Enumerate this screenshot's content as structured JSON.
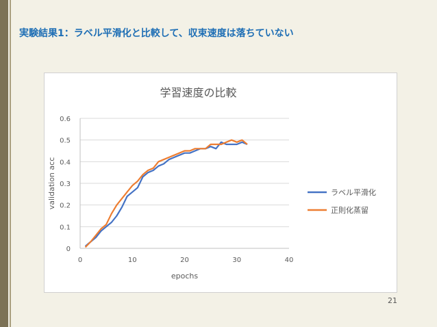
{
  "slide": {
    "title": "実験結果1：ラベル平滑化と比較して、収束速度は落ちていない",
    "page_number": "21"
  },
  "colors": {
    "accent": "#1f6fb5",
    "series_1": "#4472c4",
    "series_2": "#ed7d31"
  },
  "chart_data": {
    "type": "line",
    "title": "学習速度の比較",
    "xlabel": "epochs",
    "ylabel": "validation acc",
    "xlim": [
      0,
      40
    ],
    "ylim": [
      0,
      0.6
    ],
    "xticks": [
      0,
      10,
      20,
      30,
      40
    ],
    "yticks": [
      0,
      0.1,
      0.2,
      0.3,
      0.4,
      0.5,
      0.6
    ],
    "xtick_labels": [
      "0",
      "10",
      "20",
      "30",
      "40"
    ],
    "ytick_labels": [
      "0",
      "0.1",
      "0.2",
      "0.3",
      "0.4",
      "0.5",
      "0.6"
    ],
    "grid": "horizontal",
    "legend": "right",
    "x": [
      1,
      2,
      3,
      4,
      5,
      6,
      7,
      8,
      9,
      10,
      11,
      12,
      13,
      14,
      15,
      16,
      17,
      18,
      19,
      20,
      21,
      22,
      23,
      24,
      25,
      26,
      27,
      28,
      29,
      30,
      31,
      32
    ],
    "series": [
      {
        "name": "ラベル平滑化",
        "color": "#4472c4",
        "values": [
          0.01,
          0.03,
          0.05,
          0.08,
          0.1,
          0.12,
          0.15,
          0.19,
          0.24,
          0.26,
          0.28,
          0.33,
          0.35,
          0.36,
          0.38,
          0.39,
          0.41,
          0.42,
          0.43,
          0.44,
          0.44,
          0.45,
          0.46,
          0.46,
          0.47,
          0.46,
          0.49,
          0.48,
          0.48,
          0.48,
          0.49,
          0.48
        ]
      },
      {
        "name": "正則化蒸留",
        "color": "#ed7d31",
        "values": [
          0.005,
          0.03,
          0.06,
          0.09,
          0.11,
          0.16,
          0.2,
          0.23,
          0.26,
          0.29,
          0.31,
          0.34,
          0.36,
          0.37,
          0.4,
          0.41,
          0.42,
          0.43,
          0.44,
          0.45,
          0.45,
          0.46,
          0.46,
          0.46,
          0.48,
          0.48,
          0.48,
          0.49,
          0.5,
          0.49,
          0.5,
          0.48
        ]
      }
    ]
  }
}
